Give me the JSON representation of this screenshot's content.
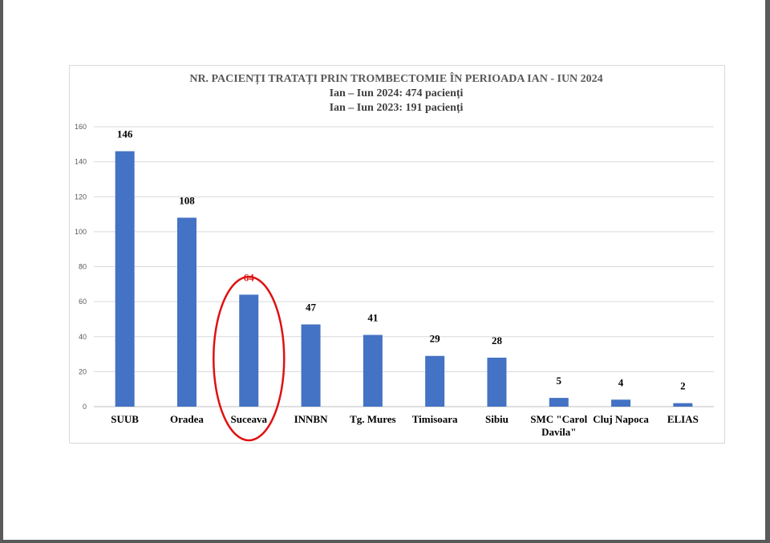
{
  "chart_data": {
    "type": "bar",
    "title": "NR. PACIENȚI TRATAȚI PRIN TROMBECTOMIE ÎN PERIOADA IAN - IUN 2024",
    "subtitle_lines": [
      "Ian – Iun 2024: 474 pacienți",
      "Ian – Iun 2023: 191 pacienți"
    ],
    "categories": [
      "SUUB",
      "Oradea",
      "Suceava",
      "INNBN",
      "Tg. Mures",
      "Timisoara",
      "Sibiu",
      "SMC \"Carol Davila\"",
      "Cluj Napoca",
      "ELIAS"
    ],
    "category_label_lines": [
      [
        "SUUB"
      ],
      [
        "Oradea"
      ],
      [
        "Suceava"
      ],
      [
        "INNBN"
      ],
      [
        "Tg. Mures"
      ],
      [
        "Timisoara"
      ],
      [
        "Sibiu"
      ],
      [
        "SMC \"Carol",
        "Davila\""
      ],
      [
        "Cluj Napoca"
      ],
      [
        "ELIAS"
      ]
    ],
    "values": [
      146,
      108,
      64,
      47,
      41,
      29,
      28,
      5,
      4,
      2
    ],
    "ylim": [
      0,
      160
    ],
    "yticks": [
      0,
      20,
      40,
      60,
      80,
      100,
      120,
      140,
      160
    ],
    "grid": true,
    "bar_color": "#4472c4",
    "highlight": {
      "category": "Suceava",
      "label_color": "#e02020",
      "ellipse_color": "#e01010"
    }
  }
}
